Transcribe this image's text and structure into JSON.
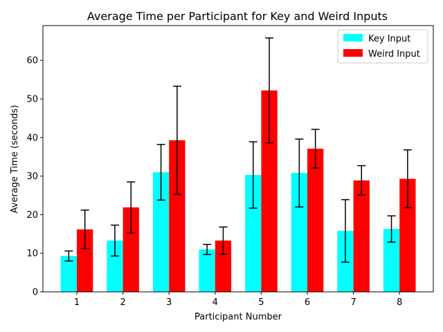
{
  "chart_data": {
    "type": "bar",
    "title": "Average Time per Participant for Key and Weird Inputs",
    "xlabel": "Participant Number",
    "ylabel": "Average Time (seconds)",
    "categories": [
      "1",
      "2",
      "3",
      "4",
      "5",
      "6",
      "7",
      "8"
    ],
    "ylim": [
      0,
      69
    ],
    "yticks": [
      0,
      10,
      20,
      30,
      40,
      50,
      60
    ],
    "grid": false,
    "legend_position": "top-right",
    "series": [
      {
        "name": "Key Input",
        "color": "#00ffff",
        "values": [
          9.3,
          13.3,
          31.0,
          11.0,
          30.3,
          30.8,
          15.8,
          16.3
        ],
        "error": [
          1.3,
          4.0,
          7.2,
          1.3,
          8.6,
          8.8,
          8.1,
          3.4
        ]
      },
      {
        "name": "Weird Input",
        "color": "#ff0000",
        "values": [
          16.2,
          21.9,
          39.3,
          13.3,
          52.2,
          37.1,
          28.9,
          29.3
        ],
        "error": [
          5.0,
          6.6,
          14.0,
          3.5,
          13.6,
          5.0,
          3.8,
          7.5
        ]
      }
    ]
  }
}
